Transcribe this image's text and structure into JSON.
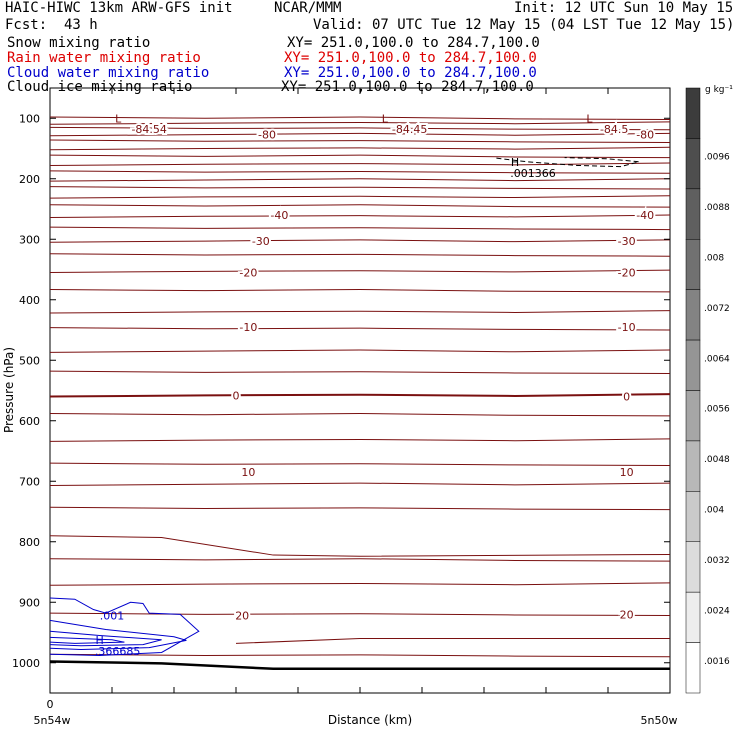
{
  "header": {
    "model": "HAIC-HIWC 13km ARW-GFS init",
    "center": "NCAR/MMM",
    "init": "Init: 12 UTC Sun 10 May 15",
    "fcst_label": "Fcst:",
    "fcst_value": "43 h",
    "valid": "Valid: 07 UTC Tue 12 May 15 (04 LST Tue 12 May 15)"
  },
  "fields": [
    {
      "name": "Snow mixing ratio",
      "xy": "XY= 251.0,100.0 to 284.7,100.0",
      "color": "#000000"
    },
    {
      "name": "Rain water mixing ratio",
      "xy": "XY= 251.0,100.0 to 284.7,100.0",
      "color": "#dd0000"
    },
    {
      "name": "Cloud water mixing ratio",
      "xy": "XY= 251.0,100.0 to 284.7,100.0",
      "color": "#0000cc"
    },
    {
      "name": "Cloud ice mixing ratio",
      "xy": "XY= 251.0,100.0 to 284.7,100.0",
      "color": "#000000"
    }
  ],
  "chart_data": {
    "type": "contour cross-section",
    "xlabel": "Distance (km)",
    "ylabel": "Pressure (hPa)",
    "x_tick_labels": [
      "0"
    ],
    "x_endpoints": [
      "5n54w",
      "5n50w"
    ],
    "y_ticks": [
      100,
      200,
      300,
      400,
      500,
      600,
      700,
      800,
      900,
      1000
    ],
    "ylim": [
      50,
      1050
    ],
    "temperature_contour_labels": [
      {
        "value": "-84.54",
        "p": 118,
        "x": 0.16
      },
      {
        "value": "-84.45",
        "p": 118,
        "x": 0.58
      },
      {
        "value": "-84.5",
        "p": 118,
        "x": 0.91
      },
      {
        "value": "-80",
        "p": 127,
        "x": 0.35
      },
      {
        "value": "-80",
        "p": 127,
        "x": 0.96
      },
      {
        "value": "-40",
        "p": 260,
        "x": 0.37
      },
      {
        "value": "-40",
        "p": 260,
        "x": 0.96
      },
      {
        "value": "-30",
        "p": 303,
        "x": 0.34
      },
      {
        "value": "-30",
        "p": 303,
        "x": 0.93
      },
      {
        "value": "-20",
        "p": 355,
        "x": 0.32
      },
      {
        "value": "-20",
        "p": 355,
        "x": 0.93
      },
      {
        "value": "-10",
        "p": 445,
        "x": 0.32
      },
      {
        "value": "-10",
        "p": 445,
        "x": 0.93
      },
      {
        "value": "0",
        "p": 558,
        "x": 0.3
      },
      {
        "value": "0",
        "p": 560,
        "x": 0.93
      },
      {
        "value": "10",
        "p": 685,
        "x": 0.32
      },
      {
        "value": "10",
        "p": 685,
        "x": 0.93
      },
      {
        "value": "20",
        "p": 922,
        "x": 0.31
      },
      {
        "value": "20",
        "p": 920,
        "x": 0.93
      }
    ],
    "extrema": [
      {
        "mark": "L",
        "p": 100,
        "x": 0.11
      },
      {
        "mark": "L",
        "p": 100,
        "x": 0.54
      },
      {
        "mark": "L",
        "p": 100,
        "x": 0.87
      },
      {
        "mark": "H",
        "p": 172,
        "x": 0.75,
        "value": ".001366"
      },
      {
        "mark": "H",
        "p": 962,
        "x": 0.08,
        "value": ".366685"
      }
    ],
    "cloud_water_labels": [
      {
        "value": ".001",
        "p": 922,
        "x": 0.1
      }
    ],
    "colorbar": {
      "units": "g kg⁻¹",
      "labels": [
        ".0096",
        ".0088",
        ".008",
        ".0072",
        ".0064",
        ".0056",
        ".0048",
        ".004",
        ".0032",
        ".0024",
        ".0016"
      ]
    }
  }
}
